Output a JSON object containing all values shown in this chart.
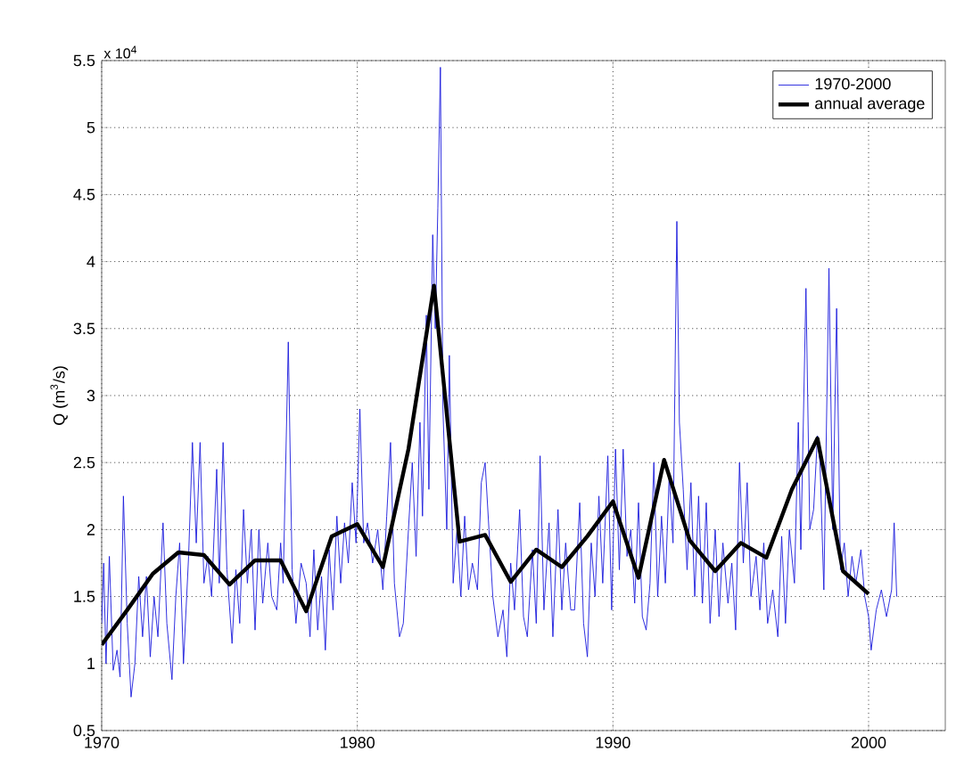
{
  "chart_data": {
    "type": "line",
    "ylabel": "Q (m$^{3}$/s)",
    "annotations": [
      "x 10$^{4}$"
    ],
    "xlim": [
      1970,
      2003
    ],
    "ylim": [
      0.5,
      5.5
    ],
    "xticks": [
      1970,
      1980,
      1990,
      2000
    ],
    "yticks": [
      0.5,
      1,
      1.5,
      2,
      2.5,
      3,
      3.5,
      4,
      4.5,
      5,
      5.5
    ],
    "grid": true,
    "legend": "top right",
    "marker": "none",
    "line_style": "solid",
    "series": [
      {
        "name": "1970-2000",
        "color": "#1a1adc",
        "x": [
          1970.0,
          1970.08,
          1970.17,
          1970.3,
          1970.45,
          1970.6,
          1970.72,
          1970.85,
          1971.0,
          1971.15,
          1971.3,
          1971.45,
          1971.6,
          1971.75,
          1971.9,
          1972.05,
          1972.2,
          1972.4,
          1972.55,
          1972.75,
          1972.9,
          1973.05,
          1973.2,
          1973.4,
          1973.55,
          1973.7,
          1973.85,
          1974.0,
          1974.15,
          1974.3,
          1974.5,
          1974.6,
          1974.75,
          1974.9,
          1975.1,
          1975.25,
          1975.4,
          1975.55,
          1975.7,
          1975.85,
          1976.0,
          1976.15,
          1976.3,
          1976.5,
          1976.65,
          1976.85,
          1977.0,
          1977.1,
          1977.3,
          1977.45,
          1977.6,
          1977.8,
          1978.0,
          1978.15,
          1978.3,
          1978.45,
          1978.6,
          1978.75,
          1978.9,
          1979.05,
          1979.2,
          1979.35,
          1979.5,
          1979.65,
          1979.8,
          1979.95,
          1980.1,
          1980.25,
          1980.4,
          1980.6,
          1980.8,
          1981.0,
          1981.15,
          1981.3,
          1981.45,
          1981.65,
          1981.8,
          1982.0,
          1982.15,
          1982.3,
          1982.45,
          1982.55,
          1982.7,
          1982.8,
          1982.95,
          1983.05,
          1983.15,
          1983.25,
          1983.35,
          1983.5,
          1983.6,
          1983.75,
          1983.9,
          1984.05,
          1984.2,
          1984.35,
          1984.5,
          1984.7,
          1984.85,
          1985.0,
          1985.15,
          1985.3,
          1985.5,
          1985.7,
          1985.85,
          1986.0,
          1986.15,
          1986.35,
          1986.5,
          1986.65,
          1986.85,
          1987.0,
          1987.15,
          1987.3,
          1987.5,
          1987.65,
          1987.85,
          1988.0,
          1988.15,
          1988.35,
          1988.5,
          1988.7,
          1988.85,
          1989.0,
          1989.15,
          1989.3,
          1989.45,
          1989.6,
          1989.8,
          1989.95,
          1990.1,
          1990.25,
          1990.4,
          1990.55,
          1990.7,
          1990.85,
          1991.0,
          1991.15,
          1991.3,
          1991.45,
          1991.6,
          1991.75,
          1991.9,
          1992.05,
          1992.2,
          1992.35,
          1992.5,
          1992.6,
          1992.75,
          1992.9,
          1993.05,
          1993.2,
          1993.35,
          1993.5,
          1993.65,
          1993.8,
          1994.0,
          1994.15,
          1994.3,
          1994.5,
          1994.65,
          1994.8,
          1994.95,
          1995.1,
          1995.25,
          1995.4,
          1995.6,
          1995.75,
          1995.9,
          1996.05,
          1996.25,
          1996.45,
          1996.6,
          1996.75,
          1996.9,
          1997.1,
          1997.25,
          1997.35,
          1997.55,
          1997.7,
          1997.85,
          1998.0,
          1998.1,
          1998.25,
          1998.45,
          1998.6,
          1998.75,
          1998.9,
          1999.05,
          1999.2,
          1999.35,
          1999.5,
          1999.7,
          1999.85,
          2000.0,
          2000.1,
          2000.3,
          2000.5,
          2000.7,
          2000.9,
          2001.0,
          2001.1
        ],
        "values": [
          1.3,
          1.75,
          1.0,
          1.8,
          0.95,
          1.1,
          0.9,
          2.25,
          1.3,
          0.75,
          1.0,
          1.65,
          1.2,
          1.65,
          1.05,
          1.5,
          1.2,
          2.05,
          1.3,
          0.88,
          1.5,
          1.9,
          1.0,
          1.8,
          2.65,
          1.9,
          2.65,
          1.6,
          1.8,
          1.5,
          2.45,
          1.6,
          2.65,
          1.7,
          1.15,
          1.7,
          1.3,
          2.15,
          1.6,
          2.0,
          1.25,
          2.0,
          1.45,
          1.9,
          1.5,
          1.4,
          1.9,
          1.6,
          3.4,
          1.7,
          1.3,
          1.75,
          1.6,
          1.2,
          1.85,
          1.25,
          1.65,
          1.1,
          1.85,
          1.4,
          2.1,
          1.6,
          2.05,
          1.75,
          2.35,
          1.9,
          2.9,
          1.9,
          2.05,
          1.75,
          2.0,
          1.55,
          2.1,
          2.65,
          1.6,
          1.2,
          1.3,
          2.0,
          2.5,
          1.8,
          2.8,
          2.1,
          3.6,
          2.3,
          4.2,
          3.5,
          4.4,
          5.45,
          2.9,
          2.0,
          3.3,
          1.6,
          2.0,
          1.5,
          2.1,
          1.55,
          1.75,
          1.55,
          2.35,
          2.5,
          2.0,
          1.5,
          1.2,
          1.4,
          1.05,
          1.75,
          1.4,
          2.15,
          1.35,
          1.2,
          1.85,
          1.3,
          2.55,
          1.4,
          2.05,
          1.2,
          2.15,
          1.4,
          1.9,
          1.4,
          1.4,
          2.2,
          1.3,
          1.05,
          1.9,
          1.5,
          2.25,
          1.6,
          2.55,
          1.4,
          2.6,
          1.7,
          2.6,
          1.8,
          2.0,
          1.45,
          2.2,
          1.35,
          1.25,
          1.6,
          2.5,
          1.5,
          2.1,
          1.6,
          2.4,
          1.9,
          4.3,
          2.8,
          2.3,
          1.7,
          2.35,
          1.5,
          2.25,
          1.45,
          2.2,
          1.3,
          2.0,
          1.35,
          1.9,
          1.45,
          1.75,
          1.25,
          2.5,
          1.75,
          2.35,
          1.5,
          1.8,
          1.4,
          1.9,
          1.3,
          1.55,
          1.2,
          1.95,
          1.3,
          2.0,
          1.6,
          2.8,
          1.85,
          3.8,
          2.0,
          2.15,
          2.7,
          2.5,
          1.55,
          3.95,
          2.0,
          3.65,
          1.7,
          1.9,
          1.5,
          1.8,
          1.6,
          1.85,
          1.5,
          1.35,
          1.1,
          1.4,
          1.55,
          1.35,
          1.55,
          2.05,
          1.5
        ]
      },
      {
        "name": "annual average",
        "color": "#000000",
        "x": [
          1970,
          1971,
          1972,
          1973,
          1974,
          1975,
          1976,
          1977,
          1978,
          1979,
          1980,
          1981,
          1982,
          1983,
          1984,
          1985,
          1986,
          1987,
          1988,
          1989,
          1990,
          1991,
          1992,
          1993,
          1994,
          1995,
          1996,
          1997,
          1998,
          1999,
          2000
        ],
        "values": [
          1.14,
          1.4,
          1.67,
          1.83,
          1.81,
          1.59,
          1.77,
          1.77,
          1.39,
          1.95,
          2.04,
          1.72,
          2.6,
          3.82,
          1.91,
          1.96,
          1.61,
          1.85,
          1.72,
          1.95,
          2.21,
          1.64,
          2.52,
          1.92,
          1.69,
          1.9,
          1.79,
          2.3,
          2.68,
          1.69,
          1.52
        ]
      }
    ]
  }
}
